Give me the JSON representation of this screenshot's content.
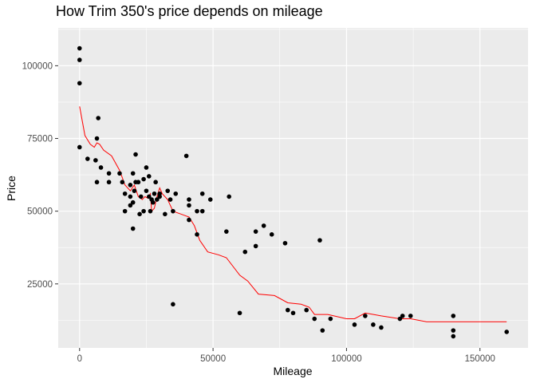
{
  "chart_data": {
    "type": "scatter",
    "title": "How Trim 350's price depends on mileage",
    "xlabel": "Mileage",
    "ylabel": "Price",
    "xlim": [
      -8000,
      168000
    ],
    "ylim": [
      3000,
      113000
    ],
    "x_ticks": [
      0,
      50000,
      100000,
      150000
    ],
    "x_tick_labels": [
      "0",
      "50000",
      "100000",
      "150000"
    ],
    "y_ticks": [
      25000,
      50000,
      75000,
      100000
    ],
    "y_tick_labels": [
      "25000",
      "50000",
      "75000",
      "100000"
    ],
    "grid": true,
    "colors": {
      "panel": "#ebebeb",
      "grid": "#ffffff",
      "points": "#000000",
      "smooth": "#ff0000"
    },
    "points": [
      [
        0,
        106000
      ],
      [
        0,
        102000
      ],
      [
        0,
        94000
      ],
      [
        0,
        72000
      ],
      [
        3000,
        68000
      ],
      [
        6000,
        67500
      ],
      [
        6500,
        75000
      ],
      [
        7000,
        82000
      ],
      [
        6500,
        60000
      ],
      [
        8000,
        65000
      ],
      [
        11000,
        63000
      ],
      [
        11000,
        60000
      ],
      [
        15000,
        63000
      ],
      [
        16000,
        60000
      ],
      [
        17000,
        50000
      ],
      [
        17000,
        56000
      ],
      [
        19000,
        55000
      ],
      [
        19000,
        59000
      ],
      [
        19000,
        52000
      ],
      [
        20000,
        63000
      ],
      [
        20000,
        53000
      ],
      [
        20000,
        44000
      ],
      [
        20500,
        57000
      ],
      [
        21000,
        60000
      ],
      [
        21000,
        69500
      ],
      [
        22000,
        60000
      ],
      [
        22500,
        49000
      ],
      [
        23000,
        55000
      ],
      [
        24000,
        61000
      ],
      [
        24000,
        50000
      ],
      [
        25000,
        57000
      ],
      [
        25000,
        65000
      ],
      [
        26000,
        62000
      ],
      [
        26000,
        55000
      ],
      [
        26500,
        50000
      ],
      [
        27000,
        54000
      ],
      [
        27500,
        53000
      ],
      [
        28000,
        56000
      ],
      [
        28500,
        60000
      ],
      [
        29000,
        54000
      ],
      [
        30000,
        56000
      ],
      [
        30000,
        55000
      ],
      [
        32000,
        49000
      ],
      [
        33000,
        57000
      ],
      [
        34000,
        54000
      ],
      [
        35000,
        50000
      ],
      [
        35000,
        18000
      ],
      [
        36000,
        56000
      ],
      [
        40000,
        69000
      ],
      [
        41000,
        47000
      ],
      [
        41000,
        52000
      ],
      [
        41000,
        54000
      ],
      [
        44000,
        50000
      ],
      [
        44000,
        42000
      ],
      [
        46000,
        56000
      ],
      [
        46000,
        50000
      ],
      [
        49000,
        54000
      ],
      [
        55000,
        43000
      ],
      [
        56000,
        55000
      ],
      [
        60000,
        15000
      ],
      [
        62000,
        36000
      ],
      [
        66000,
        43000
      ],
      [
        66000,
        38000
      ],
      [
        69000,
        45000
      ],
      [
        72000,
        42000
      ],
      [
        77000,
        39000
      ],
      [
        78000,
        16000
      ],
      [
        80000,
        15000
      ],
      [
        85000,
        16000
      ],
      [
        88000,
        13000
      ],
      [
        90000,
        40000
      ],
      [
        91000,
        9000
      ],
      [
        94000,
        13000
      ],
      [
        103000,
        11000
      ],
      [
        107000,
        14000
      ],
      [
        110000,
        11000
      ],
      [
        113000,
        10000
      ],
      [
        120000,
        13000
      ],
      [
        121000,
        14000
      ],
      [
        124000,
        14000
      ],
      [
        140000,
        14000
      ],
      [
        140000,
        9000
      ],
      [
        140000,
        7000
      ],
      [
        160000,
        8500
      ]
    ],
    "smooth_line": [
      [
        0,
        86000
      ],
      [
        2000,
        76000
      ],
      [
        4000,
        73000
      ],
      [
        5500,
        72000
      ],
      [
        6500,
        73500
      ],
      [
        7500,
        73000
      ],
      [
        9000,
        71000
      ],
      [
        12000,
        69000
      ],
      [
        15000,
        64000
      ],
      [
        17000,
        59000
      ],
      [
        19000,
        57000
      ],
      [
        20500,
        59000
      ],
      [
        22000,
        55000
      ],
      [
        23500,
        54000
      ],
      [
        24500,
        55000
      ],
      [
        25500,
        54500
      ],
      [
        26500,
        56000
      ],
      [
        27000,
        50000
      ],
      [
        28000,
        51000
      ],
      [
        29000,
        55000
      ],
      [
        30000,
        58000
      ],
      [
        31000,
        56000
      ],
      [
        33000,
        54000
      ],
      [
        35000,
        50000
      ],
      [
        38000,
        49000
      ],
      [
        41000,
        48000
      ],
      [
        43000,
        45000
      ],
      [
        45000,
        40000
      ],
      [
        48000,
        36000
      ],
      [
        52000,
        35000
      ],
      [
        55000,
        34000
      ],
      [
        60000,
        28000
      ],
      [
        63000,
        26000
      ],
      [
        67000,
        21500
      ],
      [
        73000,
        21000
      ],
      [
        75000,
        20000
      ],
      [
        78000,
        18500
      ],
      [
        83000,
        18000
      ],
      [
        86000,
        17000
      ],
      [
        88000,
        14500
      ],
      [
        93000,
        14500
      ],
      [
        100000,
        13000
      ],
      [
        103000,
        13000
      ],
      [
        107000,
        15000
      ],
      [
        113000,
        14000
      ],
      [
        120000,
        13000
      ],
      [
        124000,
        13000
      ],
      [
        130000,
        12000
      ],
      [
        140000,
        12000
      ],
      [
        160000,
        12000
      ]
    ]
  }
}
